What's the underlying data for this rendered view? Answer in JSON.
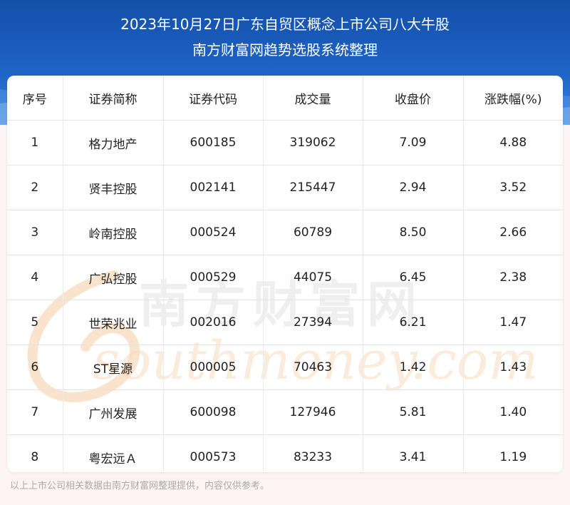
{
  "title": {
    "line1": "2023年10月27日广东自贸区概念上市公司八大牛股",
    "line2": "南方财富网趋势选股系统整理"
  },
  "table": {
    "headers": [
      "序号",
      "证券简称",
      "证券代码",
      "成交量",
      "收盘价",
      "涨跌幅(%)"
    ],
    "rows": [
      [
        "1",
        "格力地产",
        "600185",
        "319062",
        "7.09",
        "4.88"
      ],
      [
        "2",
        "贤丰控股",
        "002141",
        "215447",
        "2.94",
        "3.52"
      ],
      [
        "3",
        "岭南控股",
        "000524",
        "60789",
        "8.50",
        "2.66"
      ],
      [
        "4",
        "广弘控股",
        "000529",
        "44075",
        "6.45",
        "2.38"
      ],
      [
        "5",
        "世荣兆业",
        "002016",
        "27394",
        "6.21",
        "1.47"
      ],
      [
        "6",
        "ST星源",
        "000005",
        "70463",
        "1.42",
        "1.43"
      ],
      [
        "7",
        "广州发展",
        "600098",
        "127946",
        "5.81",
        "1.40"
      ],
      [
        "8",
        "粤宏远Ａ",
        "000573",
        "83233",
        "3.41",
        "1.19"
      ]
    ]
  },
  "watermark": {
    "cn": "南方财富网",
    "en": "southmoney.com"
  },
  "footer": "以上上市公司相关数据由南方财富网整理提供，内容仅供参考。",
  "colors": {
    "header_blue": "#1f65c8",
    "watermark_orange": "#f4b26a",
    "page_bg": "#fdf3f5"
  }
}
